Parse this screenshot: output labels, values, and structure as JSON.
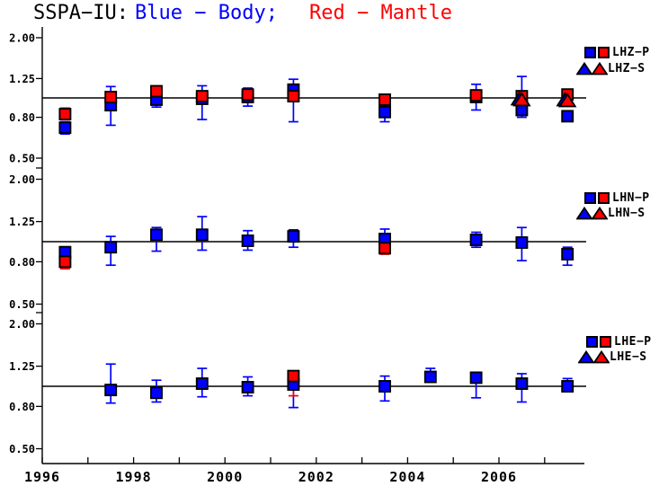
{
  "title": {
    "prefix": "SSPA−IU:",
    "body_label": "Blue − Body;",
    "mantle_label": "Red − Mantle"
  },
  "colors": {
    "body": "#0000ff",
    "mantle": "#ff0000",
    "axis": "#000000",
    "background": "#ffffff"
  },
  "x_axis": {
    "tick_years": [
      1996,
      1997,
      1998,
      1999,
      2000,
      2001,
      2002,
      2003,
      2004,
      2005,
      2006,
      2007
    ],
    "labeled_years": [
      1996,
      1998,
      2000,
      2002,
      2004,
      2006
    ],
    "range": [
      1996,
      2007.9
    ]
  },
  "y_axis": {
    "scale": "log",
    "tick_values": [
      2.0,
      1.25,
      0.8,
      0.5
    ],
    "tick_labels": [
      "2.00",
      "1.25",
      "0.80",
      "0.50"
    ],
    "reference_value": 1.0
  },
  "chart_data": [
    {
      "type": "scatter",
      "panel": "LHZ",
      "legend_p": "LHZ−P",
      "legend_s": "LHZ−S",
      "ylim": [
        0.45,
        2.2
      ],
      "reference_line": 1.0,
      "series": [
        {
          "id": "lhz-p-body",
          "name": "LHZ-P Body",
          "color_key": "body",
          "marker": "square",
          "points": [
            {
              "x": 1996.5,
              "v": 0.71,
              "lo": 0.66,
              "hi": 0.76
            },
            {
              "x": 1997.5,
              "v": 0.92,
              "lo": 0.73,
              "hi": 1.14
            },
            {
              "x": 1998.5,
              "v": 0.98,
              "lo": 0.9,
              "hi": 1.07
            },
            {
              "x": 1999.5,
              "v": 0.99,
              "lo": 0.78,
              "hi": 1.15
            },
            {
              "x": 2000.5,
              "v": 1.01,
              "lo": 0.91,
              "hi": 1.12
            },
            {
              "x": 2001.5,
              "v": 1.1,
              "lo": 0.76,
              "hi": 1.24
            },
            {
              "x": 2003.5,
              "v": 0.85,
              "lo": 0.76,
              "hi": 0.93
            },
            {
              "x": 2005.5,
              "v": 1.01,
              "lo": 0.87,
              "hi": 1.17
            },
            {
              "x": 2006.5,
              "v": 0.87,
              "lo": 0.8,
              "hi": 1.28
            },
            {
              "x": 2007.5,
              "v": 0.81,
              "lo": 0.78,
              "hi": 0.85
            }
          ]
        },
        {
          "id": "lhz-p-mantle",
          "name": "LHZ-P Mantle",
          "color_key": "mantle",
          "marker": "square",
          "points": [
            {
              "x": 1996.5,
              "v": 0.83,
              "lo": 0.78,
              "hi": 0.89
            },
            {
              "x": 1997.5,
              "v": 1.01,
              "lo": 0.95,
              "hi": 1.06
            },
            {
              "x": 1998.5,
              "v": 1.08,
              "lo": 1.02,
              "hi": 1.13
            },
            {
              "x": 1999.5,
              "v": 1.02,
              "lo": 0.97,
              "hi": 1.08
            },
            {
              "x": 2000.5,
              "v": 1.04,
              "lo": 0.99,
              "hi": 1.09
            },
            {
              "x": 2001.5,
              "v": 1.02,
              "lo": 0.96,
              "hi": 1.09
            },
            {
              "x": 2003.5,
              "v": 0.98,
              "lo": 0.93,
              "hi": 1.03
            },
            {
              "x": 2005.5,
              "v": 1.03,
              "lo": 0.98,
              "hi": 1.09
            },
            {
              "x": 2006.5,
              "v": 1.02,
              "lo": 0.97,
              "hi": 1.07
            },
            {
              "x": 2007.5,
              "v": 1.04,
              "lo": 0.94,
              "hi": 1.1
            }
          ]
        },
        {
          "id": "lhz-s-body",
          "name": "LHZ-S Body",
          "color_key": "body",
          "marker": "triangle",
          "points": [
            {
              "x": 2006.45,
              "v": 0.99
            },
            {
              "x": 2007.45,
              "v": 0.98
            }
          ]
        },
        {
          "id": "lhz-s-mantle",
          "name": "LHZ-S Mantle",
          "color_key": "mantle",
          "marker": "triangle",
          "points": [
            {
              "x": 2006.5,
              "v": 0.98
            },
            {
              "x": 2007.5,
              "v": 0.97
            }
          ]
        }
      ]
    },
    {
      "type": "scatter",
      "panel": "LHN",
      "legend_p": "LHN−P",
      "legend_s": "LHN−S",
      "ylim": [
        0.45,
        2.2
      ],
      "reference_line": 1.0,
      "series": [
        {
          "id": "lhn-p-body",
          "name": "LHN-P Body",
          "color_key": "body",
          "marker": "square",
          "points": [
            {
              "x": 1996.5,
              "v": 0.89,
              "lo": 0.84,
              "hi": 0.93
            },
            {
              "x": 1997.5,
              "v": 0.94,
              "lo": 0.77,
              "hi": 1.06
            },
            {
              "x": 1998.5,
              "v": 1.08,
              "lo": 0.9,
              "hi": 1.17
            },
            {
              "x": 1999.5,
              "v": 1.08,
              "lo": 0.91,
              "hi": 1.32
            },
            {
              "x": 2000.5,
              "v": 1.01,
              "lo": 0.91,
              "hi": 1.13
            },
            {
              "x": 2001.5,
              "v": 1.06,
              "lo": 0.94,
              "hi": 1.14
            },
            {
              "x": 2003.5,
              "v": 1.03,
              "lo": 0.9,
              "hi": 1.15
            },
            {
              "x": 2005.5,
              "v": 1.02,
              "lo": 0.94,
              "hi": 1.11
            },
            {
              "x": 2006.5,
              "v": 0.99,
              "lo": 0.81,
              "hi": 1.17
            },
            {
              "x": 2007.5,
              "v": 0.87,
              "lo": 0.77,
              "hi": 0.94
            }
          ]
        },
        {
          "id": "lhn-p-mantle",
          "name": "LHN-P Mantle",
          "color_key": "mantle",
          "marker": "square",
          "points": [
            {
              "x": 1996.5,
              "v": 0.8,
              "lo": 0.74,
              "hi": 0.86
            },
            {
              "x": 2003.5,
              "v": 0.93,
              "lo": 0.87,
              "hi": 0.99
            }
          ]
        },
        {
          "id": "lhn-s-body",
          "name": "LHN-S Body",
          "color_key": "body",
          "marker": "triangle",
          "points": []
        },
        {
          "id": "lhn-s-mantle",
          "name": "LHN-S Mantle",
          "color_key": "mantle",
          "marker": "triangle",
          "points": []
        }
      ]
    },
    {
      "type": "scatter",
      "panel": "LHE",
      "legend_p": "LHE−P",
      "legend_s": "LHE−S",
      "ylim": [
        0.45,
        2.2
      ],
      "reference_line": 1.0,
      "series": [
        {
          "id": "lhe-p-body",
          "name": "LHE-P Body",
          "color_key": "body",
          "marker": "square",
          "points": [
            {
              "x": 1997.5,
              "v": 0.96,
              "lo": 0.83,
              "hi": 1.28
            },
            {
              "x": 1998.5,
              "v": 0.93,
              "lo": 0.84,
              "hi": 1.07
            },
            {
              "x": 1999.5,
              "v": 1.03,
              "lo": 0.89,
              "hi": 1.22
            },
            {
              "x": 2000.5,
              "v": 0.99,
              "lo": 0.9,
              "hi": 1.11
            },
            {
              "x": 2001.5,
              "v": 1.02,
              "lo": 0.79,
              "hi": 1.16
            },
            {
              "x": 2003.5,
              "v": 1.0,
              "lo": 0.85,
              "hi": 1.12
            },
            {
              "x": 2004.5,
              "v": 1.11,
              "lo": 1.05,
              "hi": 1.22
            },
            {
              "x": 2005.5,
              "v": 1.1,
              "lo": 0.88,
              "hi": 1.15
            },
            {
              "x": 2006.5,
              "v": 1.03,
              "lo": 0.84,
              "hi": 1.15
            },
            {
              "x": 2007.5,
              "v": 1.0,
              "lo": 0.95,
              "hi": 1.09
            }
          ]
        },
        {
          "id": "lhe-p-mantle",
          "name": "LHE-P Mantle",
          "color_key": "mantle",
          "marker": "square",
          "points": [
            {
              "x": 2001.5,
              "v": 1.12,
              "lo": 0.9,
              "hi": 1.18
            }
          ]
        },
        {
          "id": "lhe-s-body",
          "name": "LHE-S Body",
          "color_key": "body",
          "marker": "triangle",
          "points": []
        },
        {
          "id": "lhe-s-mantle",
          "name": "LHE-S Mantle",
          "color_key": "mantle",
          "marker": "triangle",
          "points": []
        }
      ]
    }
  ]
}
